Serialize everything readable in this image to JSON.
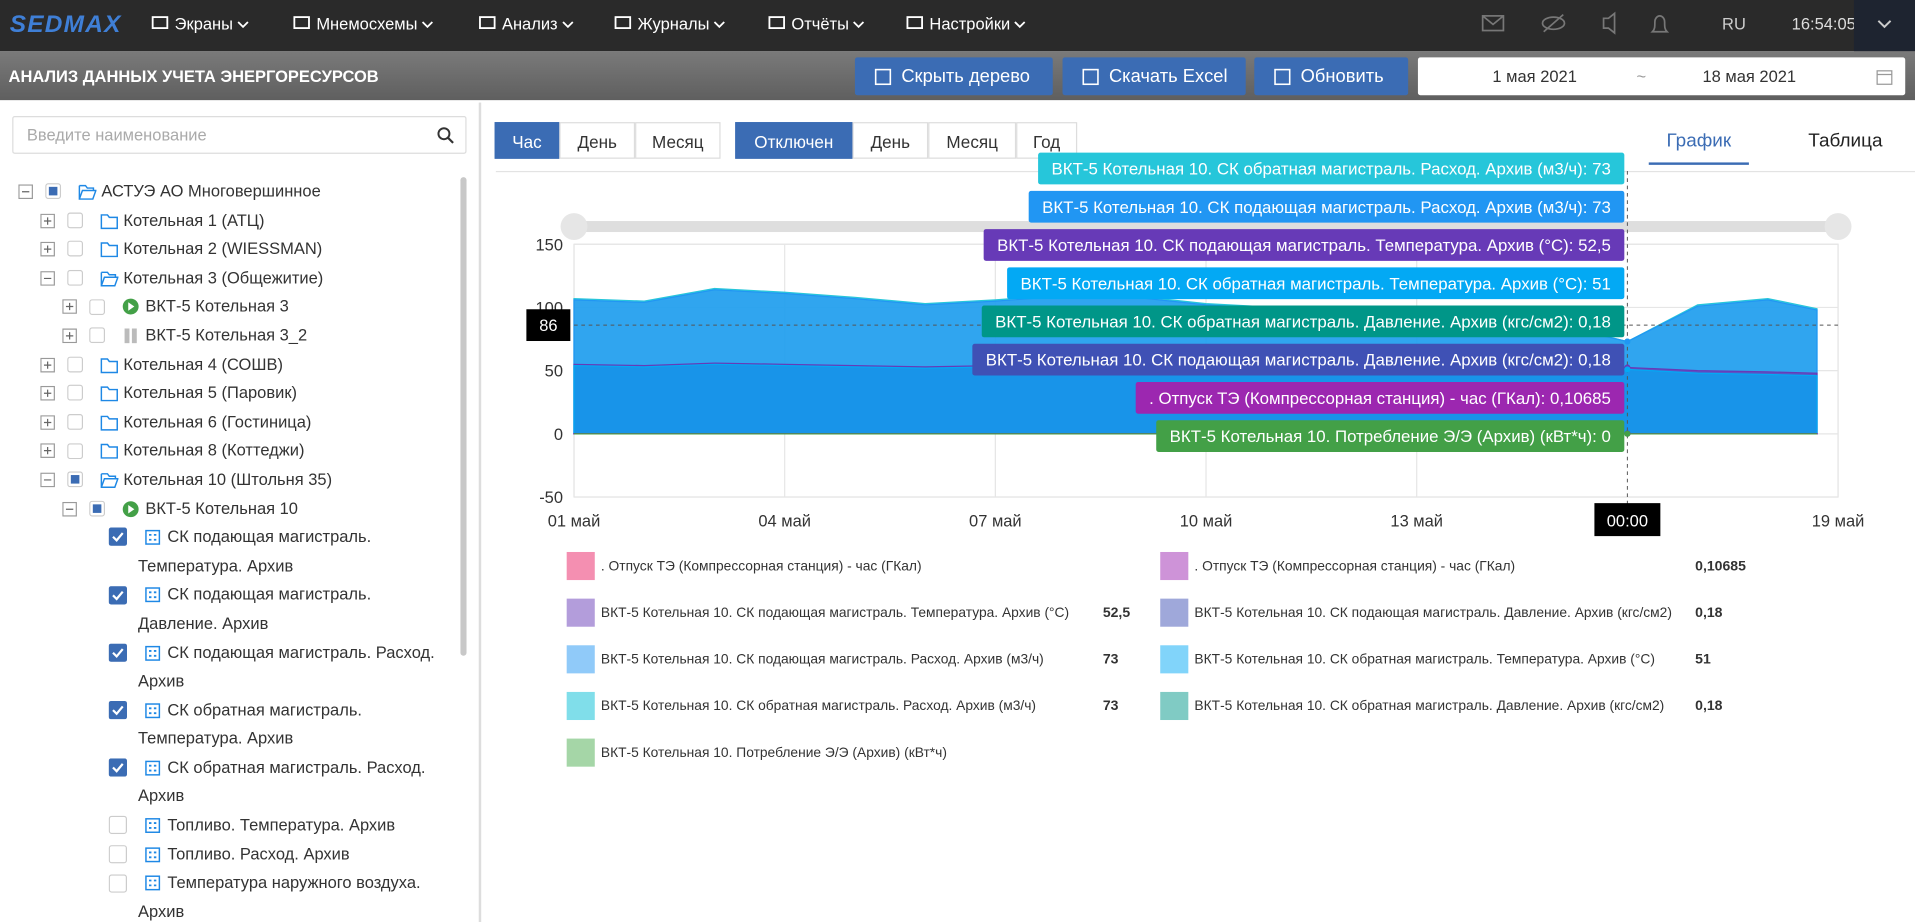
{
  "navbar": {
    "logo": "SEDMAX",
    "menu": [
      "Экраны",
      "Мнемосхемы",
      "Анализ",
      "Журналы",
      "Отчёты",
      "Настройки"
    ],
    "language": "RU",
    "time": "16:54:05"
  },
  "header": {
    "title": "АНАЛИЗ ДАННЫХ УЧЕТА ЭНЕРГОРЕСУРСОВ",
    "buttons": [
      "Скрыть дерево",
      "Скачать Excel",
      "Обновить"
    ],
    "date_from": "1 мая 2021",
    "date_separator": "~",
    "date_to": "18 мая 2021"
  },
  "tree": {
    "search_placeholder": "Введите наименование",
    "nodes": [
      {
        "label": "АСТУЭ АО Многовершинное",
        "level": 0,
        "toggle": "expanded",
        "check": "partial",
        "icon": "folder-open"
      },
      {
        "label": "Котельная 1 (АТЦ)",
        "level": 1,
        "toggle": "collapsed",
        "check": "empty",
        "icon": "folder"
      },
      {
        "label": "Котельная 2 (WIESSMAN)",
        "level": 1,
        "toggle": "collapsed",
        "check": "empty",
        "icon": "folder"
      },
      {
        "label": "Котельная 3 (Общежитие)",
        "level": 1,
        "toggle": "expanded",
        "check": "empty",
        "icon": "folder-open"
      },
      {
        "label": "ВКТ-5 Котельная 3",
        "level": 2,
        "toggle": "collapsed",
        "check": "empty",
        "icon": "play"
      },
      {
        "label": "ВКТ-5 Котельная 3_2",
        "level": 2,
        "toggle": "collapsed",
        "check": "empty",
        "icon": "pause"
      },
      {
        "label": "Котельная 4 (СОШВ)",
        "level": 1,
        "toggle": "collapsed",
        "check": "empty",
        "icon": "folder"
      },
      {
        "label": "Котельная 5 (Паровик)",
        "level": 1,
        "toggle": "collapsed",
        "check": "empty",
        "icon": "folder"
      },
      {
        "label": "Котельная 6 (Гостиница)",
        "level": 1,
        "toggle": "collapsed",
        "check": "empty",
        "icon": "folder"
      },
      {
        "label": "Котельная 8 (Коттеджи)",
        "level": 1,
        "toggle": "collapsed",
        "check": "empty",
        "icon": "folder"
      },
      {
        "label": "Котельная 10 (Штольня 35)",
        "level": 1,
        "toggle": "expanded",
        "check": "partial",
        "icon": "folder-open"
      },
      {
        "label": "ВКТ-5 Котельная 10",
        "level": 2,
        "toggle": "expanded",
        "check": "partial",
        "icon": "play"
      },
      {
        "label": "СК подающая магистраль. Температура. Архив",
        "level": 3,
        "toggle": "none",
        "check": "checked",
        "icon": "sensor"
      },
      {
        "label": "СК подающая магистраль. Давление. Архив",
        "level": 3,
        "toggle": "none",
        "check": "checked",
        "icon": "sensor"
      },
      {
        "label": "СК подающая магистраль. Расход. Архив",
        "level": 3,
        "toggle": "none",
        "check": "checked",
        "icon": "sensor"
      },
      {
        "label": "СК обратная магистраль. Температура. Архив",
        "level": 3,
        "toggle": "none",
        "check": "checked",
        "icon": "sensor"
      },
      {
        "label": "СК обратная магистраль. Расход. Архив",
        "level": 3,
        "toggle": "none",
        "check": "checked",
        "icon": "sensor"
      },
      {
        "label": "Топливо. Температура. Архив",
        "level": 3,
        "toggle": "none",
        "check": "empty",
        "icon": "sensor"
      },
      {
        "label": "Топливо. Расход. Архив",
        "level": 3,
        "toggle": "none",
        "check": "empty",
        "icon": "sensor"
      },
      {
        "label": "Температура наружного воздуха. Архив",
        "level": 3,
        "toggle": "none",
        "check": "empty",
        "icon": "sensor"
      }
    ]
  },
  "controls": {
    "period": {
      "options": [
        "Час",
        "День",
        "Месяц"
      ],
      "active": 0
    },
    "aggregation": {
      "options": [
        "Отключен",
        "День",
        "Месяц",
        "Год"
      ],
      "active": 0
    },
    "views": {
      "options": [
        "График",
        "Таблица"
      ],
      "active": 0
    }
  },
  "chart_data": {
    "type": "area",
    "x": [
      1,
      2,
      3,
      4,
      5,
      6,
      7,
      8,
      9,
      10,
      11,
      12,
      13,
      14,
      15,
      16,
      17,
      18,
      18.7
    ],
    "xlim": [
      1,
      19
    ],
    "xticks": [
      {
        "value": 1,
        "label": "01 май"
      },
      {
        "value": 4,
        "label": "04 май"
      },
      {
        "value": 7,
        "label": "07 май"
      },
      {
        "value": 10,
        "label": "10 май"
      },
      {
        "value": 13,
        "label": "13 май"
      },
      {
        "value": 19,
        "label": "19 май"
      }
    ],
    "ylim": [
      -50,
      150
    ],
    "yticks": [
      150,
      100,
      50,
      0,
      -50
    ],
    "grid": true,
    "crosshair": {
      "x": 16,
      "y": 86,
      "x_label": "00:00"
    },
    "series": [
      {
        "name": "ВКТ-5 Котельная 10. СК обратная магистраль. Расход. Архив (м3/ч)",
        "color": "#26c6da",
        "tooltip": "ВКТ-5 Котельная 10. СК обратная магистраль. Расход. Архив (м3/ч): 73",
        "values": [
          107,
          105,
          115,
          112,
          108,
          103,
          106,
          110,
          109,
          103,
          100,
          98,
          96,
          93,
          87,
          73,
          102,
          107,
          99
        ]
      },
      {
        "name": "ВКТ-5 Котельная 10. СК подающая магистраль. Расход. Архив (м3/ч)",
        "color": "#2196f3",
        "tooltip": "ВКТ-5 Котельная 10. СК подающая магистраль. Расход. Архив (м3/ч): 73",
        "values": [
          106,
          104,
          114,
          111,
          107,
          102,
          105,
          109,
          108,
          102,
          99,
          97,
          95,
          92,
          86,
          73,
          101,
          106,
          98
        ]
      },
      {
        "name": "ВКТ-5 Котельная 10. СК подающая магистраль. Температура. Архив (°С)",
        "color": "#673ab7",
        "tooltip": "ВКТ-5 Котельная 10. СК подающая магистраль. Температура. Архив (°С): 52,5",
        "values": [
          55,
          54,
          56,
          55,
          54,
          53,
          54,
          55,
          54,
          53,
          53,
          52,
          52,
          52,
          53,
          52.5,
          50,
          49,
          48
        ]
      },
      {
        "name": "ВКТ-5 Котельная 10. СК обратная магистраль. Температура. Архив (°С)",
        "color": "#03a9f4",
        "tooltip": "ВКТ-5 Котельная 10. СК обратная магистраль. Температура. Архив (°С): 51",
        "values": [
          54,
          53,
          55,
          54,
          53,
          52,
          53,
          54,
          53,
          52,
          52,
          51,
          51,
          51,
          52,
          51,
          48,
          47,
          46
        ]
      },
      {
        "name": "ВКТ-5 Котельная 10. СК обратная магистраль. Давление. Архив (кгс/см2)",
        "color": "#009688",
        "tooltip": "ВКТ-5 Котельная 10. СК обратная магистраль. Давление. Архив (кгс/см2): 0,18",
        "values": [
          0.18,
          0.18,
          0.18,
          0.18,
          0.18,
          0.18,
          0.18,
          0.18,
          0.18,
          0.18,
          0.18,
          0.18,
          0.18,
          0.18,
          0.18,
          0.18,
          0.18,
          0.18,
          0.18
        ]
      },
      {
        "name": "ВКТ-5 Котельная 10. СК подающая магистраль. Давление. Архив (кгс/см2)",
        "color": "#3f51b5",
        "tooltip": "ВКТ-5 Котельная 10. СК подающая магистраль. Давление. Архив (кгс/см2): 0,18",
        "values": [
          0.18,
          0.18,
          0.18,
          0.18,
          0.18,
          0.18,
          0.18,
          0.18,
          0.18,
          0.18,
          0.18,
          0.18,
          0.18,
          0.18,
          0.18,
          0.18,
          0.18,
          0.18,
          0.18
        ]
      },
      {
        "name": ". Отпуск ТЭ (Компрессорная станция) - час (ГКал)",
        "color": "#9c27b0",
        "tooltip": ". Отпуск ТЭ (Компрессорная станция) - час (ГКал): 0,10685",
        "values": [
          0.10685,
          0.10685,
          0.10685,
          0.10685,
          0.10685,
          0.10685,
          0.10685,
          0.10685,
          0.10685,
          0.10685,
          0.10685,
          0.10685,
          0.10685,
          0.10685,
          0.10685,
          0.10685,
          0.10685,
          0.10685,
          0.10685
        ]
      },
      {
        "name": "ВКТ-5 Котельная 10. Потребление Э/Э (Архив) (кВт*ч)",
        "color": "#43a047",
        "tooltip": "ВКТ-5 Котельная 10. Потребление Э/Э (Архив) (кВт*ч): 0",
        "values": [
          0,
          0,
          0,
          0,
          0,
          0,
          0,
          0,
          0,
          0,
          0,
          0,
          0,
          0,
          0,
          0,
          0,
          0,
          0
        ]
      }
    ],
    "legend": [
      {
        "name": ". Отпуск ТЭ (Компрессорная станция) - час (ГКал)",
        "color": "#f48fb1"
      },
      {
        "name": ". Отпуск ТЭ (Компрессорная станция) - час (ГКал)",
        "color": "#ce93d8",
        "value": "0,10685"
      },
      {
        "name": "ВКТ-5 Котельная 10. СК подающая магистраль. Температура. Архив (°С)",
        "color": "#b39ddb",
        "value": "52,5"
      },
      {
        "name": "ВКТ-5 Котельная 10. СК подающая магистраль. Давление. Архив (кгс/см2)",
        "color": "#9fa8da",
        "value": "0,18"
      },
      {
        "name": "ВКТ-5 Котельная 10. СК подающая магистраль. Расход. Архив (м3/ч)",
        "color": "#90caf9",
        "value": "73"
      },
      {
        "name": "ВКТ-5 Котельная 10. СК обратная магистраль. Температура. Архив (°С)",
        "color": "#81d4fa",
        "value": "51"
      },
      {
        "name": "ВКТ-5 Котельная 10. СК обратная магистраль. Расход. Архив (м3/ч)",
        "color": "#80deea",
        "value": "73"
      },
      {
        "name": "ВКТ-5 Котельная 10. СК обратная магистраль. Давление. Архив (кгс/см2)",
        "color": "#80cbc4",
        "value": "0,18"
      },
      {
        "name": "ВКТ-5 Котельная 10. Потребление Э/Э (Архив) (кВт*ч)",
        "color": "#a5d6a7"
      }
    ]
  }
}
